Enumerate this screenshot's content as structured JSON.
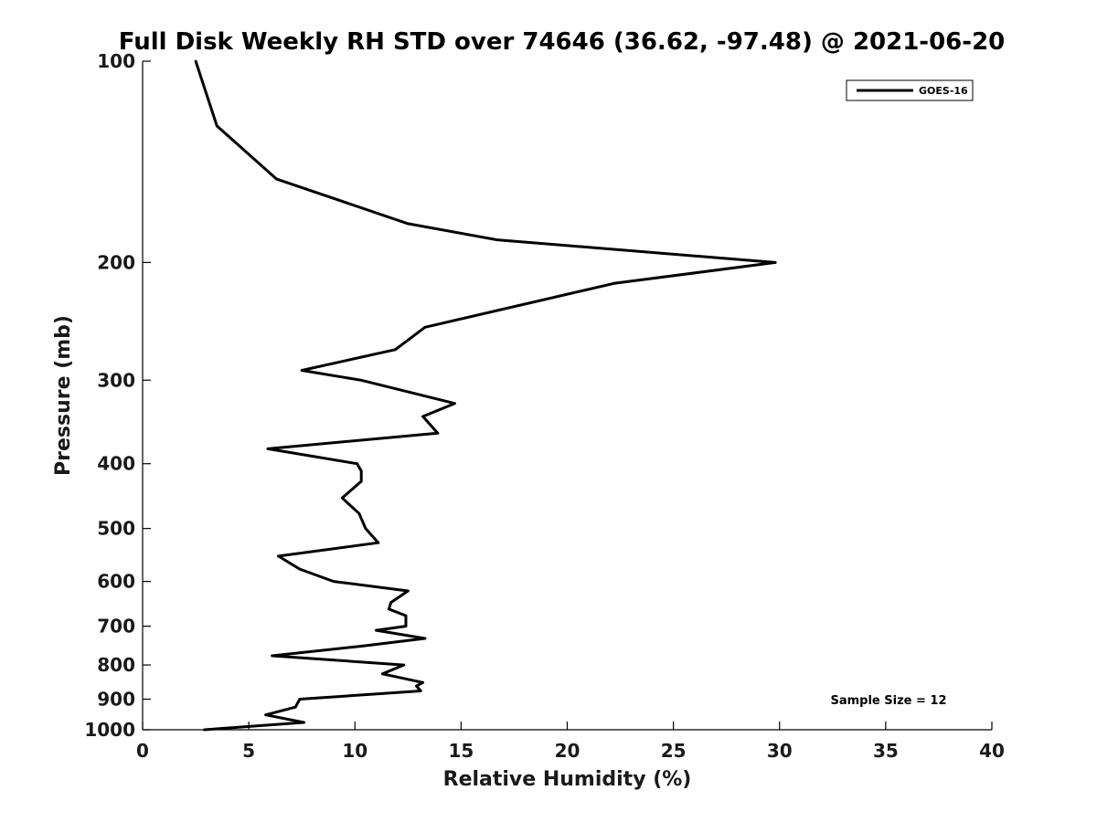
{
  "chart_data": {
    "type": "line",
    "title": "Full Disk Weekly RH STD over 74646 (36.62, -97.48) @ 2021-06-20",
    "xlabel": "Relative Humidity (%)",
    "ylabel": "Pressure (mb)",
    "xlim": [
      0,
      40
    ],
    "ylim": [
      100,
      1000
    ],
    "y_scale": "log",
    "y_reversed": true,
    "x_ticks": [
      0,
      5,
      10,
      15,
      20,
      25,
      30,
      35,
      40
    ],
    "y_ticks": [
      100,
      200,
      300,
      400,
      500,
      600,
      700,
      800,
      900,
      1000
    ],
    "x_tick_labels": [
      "0",
      "5",
      "10",
      "15",
      "20",
      "25",
      "30",
      "35",
      "40"
    ],
    "y_tick_labels": [
      "100",
      "200",
      "300",
      "400",
      "500",
      "600",
      "700",
      "800",
      "900",
      "1000"
    ],
    "grid": false,
    "legend_position": "top-right",
    "annotation": "Sample Size = 12",
    "series": [
      {
        "name": "GOES-16",
        "color": "#000000",
        "points": [
          [
            2.5,
            100
          ],
          [
            3.5,
            125
          ],
          [
            6.3,
            150
          ],
          [
            12.5,
            175
          ],
          [
            16.7,
            185
          ],
          [
            29.8,
            200
          ],
          [
            22.2,
            215
          ],
          [
            13.3,
            250
          ],
          [
            11.9,
            270
          ],
          [
            7.5,
            290
          ],
          [
            10.3,
            300
          ],
          [
            14.7,
            325
          ],
          [
            13.2,
            340
          ],
          [
            13.9,
            360
          ],
          [
            5.9,
            380
          ],
          [
            10.1,
            400
          ],
          [
            10.3,
            410
          ],
          [
            10.3,
            425
          ],
          [
            9.4,
            450
          ],
          [
            10.2,
            475
          ],
          [
            10.5,
            500
          ],
          [
            11.1,
            525
          ],
          [
            6.4,
            550
          ],
          [
            7.4,
            575
          ],
          [
            9.0,
            600
          ],
          [
            12.5,
            620
          ],
          [
            11.7,
            645
          ],
          [
            11.6,
            660
          ],
          [
            12.4,
            675
          ],
          [
            12.4,
            700
          ],
          [
            11.0,
            710
          ],
          [
            13.3,
            730
          ],
          [
            10.3,
            750
          ],
          [
            6.1,
            775
          ],
          [
            12.3,
            800
          ],
          [
            11.3,
            825
          ],
          [
            13.2,
            850
          ],
          [
            12.9,
            860
          ],
          [
            13.1,
            875
          ],
          [
            7.4,
            900
          ],
          [
            7.2,
            925
          ],
          [
            5.8,
            950
          ],
          [
            7.6,
            975
          ],
          [
            2.9,
            1000
          ]
        ]
      }
    ]
  }
}
